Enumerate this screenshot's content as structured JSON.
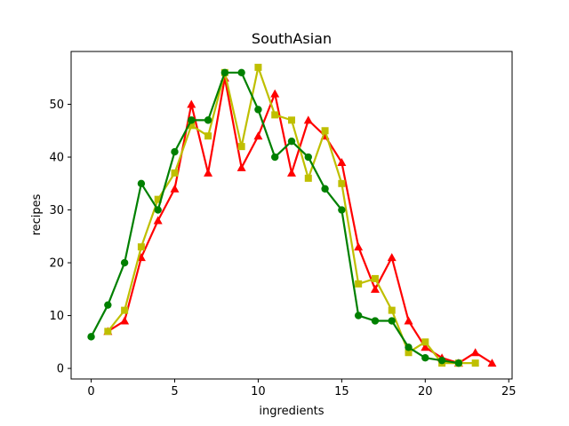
{
  "chart_data": {
    "type": "line",
    "title": "SouthAsian",
    "xlabel": "ingredients",
    "ylabel": "recipes",
    "xlim": [
      -1.2,
      25.2
    ],
    "ylim": [
      -2.0,
      60.0
    ],
    "xticks": [
      0,
      5,
      10,
      15,
      20,
      25
    ],
    "yticks": [
      0,
      10,
      20,
      30,
      40,
      50
    ],
    "grid": false,
    "legend": "none",
    "series": [
      {
        "color": "#ff0000",
        "marker": "triangle",
        "x": [
          1,
          2,
          3,
          4,
          5,
          6,
          7,
          8,
          9,
          10,
          11,
          12,
          13,
          14,
          15,
          16,
          17,
          18,
          19,
          20,
          21,
          22,
          23,
          24
        ],
        "y": [
          7,
          9,
          21,
          28,
          34,
          50,
          37,
          55,
          38,
          44,
          52,
          37,
          47,
          44,
          39,
          23,
          15,
          21,
          9,
          4,
          2,
          1,
          3,
          1
        ]
      },
      {
        "color": "#bfbf00",
        "marker": "square",
        "x": [
          1,
          2,
          3,
          4,
          5,
          6,
          7,
          8,
          9,
          10,
          11,
          12,
          13,
          14,
          15,
          16,
          17,
          18,
          19,
          20,
          21,
          22,
          23
        ],
        "y": [
          7,
          11,
          23,
          32,
          37,
          46,
          44,
          56,
          42,
          57,
          48,
          47,
          36,
          45,
          35,
          16,
          17,
          11,
          3,
          5,
          1,
          1,
          1
        ]
      },
      {
        "color": "#008000",
        "marker": "circle",
        "x": [
          0,
          1,
          2,
          3,
          4,
          5,
          6,
          7,
          8,
          9,
          10,
          11,
          12,
          13,
          14,
          15,
          16,
          17,
          18,
          19,
          20,
          21,
          22
        ],
        "y": [
          6,
          12,
          20,
          35,
          30,
          41,
          47,
          47,
          56,
          56,
          49,
          40,
          43,
          40,
          34,
          30,
          10,
          9,
          9,
          4,
          2,
          1.5,
          1
        ]
      }
    ]
  }
}
